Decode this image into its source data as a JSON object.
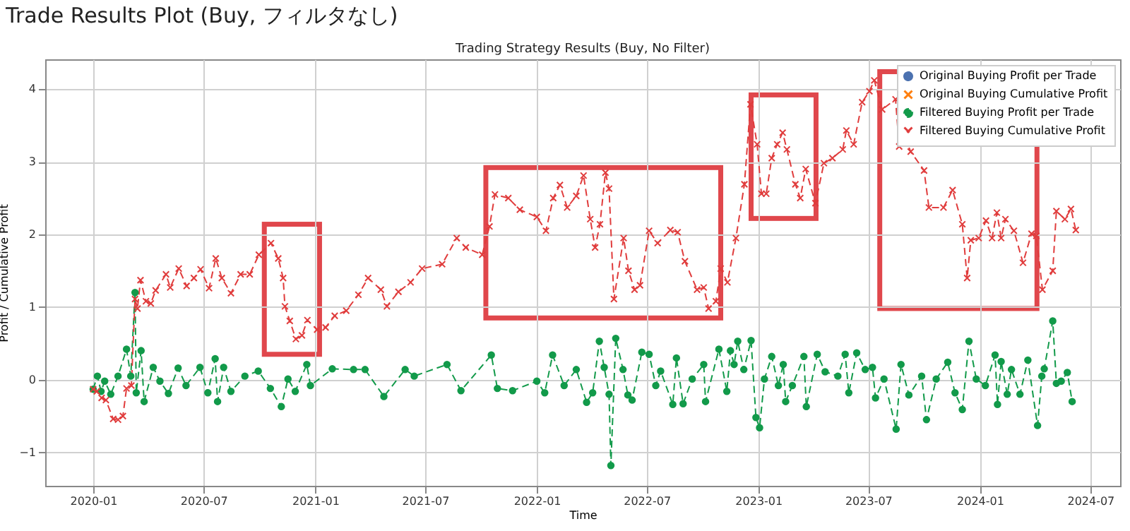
{
  "chart_data": {
    "type": "line",
    "title": "Trade Results Plot (Buy, フィルタなし)",
    "subtitle": "Trading Strategy Results (Buy, No Filter)",
    "xlabel": "Time",
    "ylabel": "Profit / Cumulative Profit",
    "xlim": [
      "2019-10-14",
      "2024-08-19"
    ],
    "xticks": [
      "2020-01",
      "2020-07",
      "2021-01",
      "2021-07",
      "2022-01",
      "2022-07",
      "2023-01",
      "2023-07",
      "2024-01",
      "2024-07"
    ],
    "ylim": [
      -1.46,
      4.41
    ],
    "yticks": [
      {
        "value": -1,
        "label": "−1"
      },
      0,
      1,
      2,
      3,
      4
    ],
    "grid": true,
    "legend": "top right",
    "series": [
      {
        "name": "Original Buying Profit per Trade",
        "color": "#4c72b0",
        "marker": "circle",
        "line_style": "solid"
      },
      {
        "name": "Original Buying Cumulative Profit",
        "color": "#ff7f0e",
        "marker": "cross",
        "line_style": "solid"
      },
      {
        "name": "Filtered Buying Profit per Trade",
        "color": "#129a4a",
        "marker": "circle",
        "line_style": "dashed",
        "x": [
          "2020-01-01",
          "2020-01-08",
          "2020-01-14",
          "2020-01-20",
          "2020-01-30",
          "2020-02-11",
          "2020-02-25",
          "2020-03-03",
          "2020-03-10",
          "2020-03-12",
          "2020-03-20",
          "2020-03-25",
          "2020-04-09",
          "2020-04-20",
          "2020-05-04",
          "2020-05-20",
          "2020-06-02",
          "2020-06-25",
          "2020-07-08",
          "2020-07-20",
          "2020-07-24",
          "2020-08-03",
          "2020-08-15",
          "2020-09-07",
          "2020-09-29",
          "2020-10-19",
          "2020-11-06",
          "2020-11-17",
          "2020-11-29",
          "2020-12-18",
          "2020-12-24",
          "2021-01-29",
          "2021-03-05",
          "2021-03-24",
          "2021-04-24",
          "2021-05-29",
          "2021-06-13",
          "2021-08-06",
          "2021-08-29",
          "2021-10-18",
          "2021-10-28",
          "2021-11-22",
          "2022-01-01",
          "2022-01-14",
          "2022-01-27",
          "2022-02-15",
          "2022-03-07",
          "2022-03-24",
          "2022-04-03",
          "2022-04-14",
          "2022-04-22",
          "2022-04-30",
          "2022-05-03",
          "2022-05-11",
          "2022-05-23",
          "2022-05-31",
          "2022-06-07",
          "2022-06-23",
          "2022-07-05",
          "2022-07-16",
          "2022-07-24",
          "2022-08-13",
          "2022-08-19",
          "2022-08-30",
          "2022-09-14",
          "2022-10-03",
          "2022-10-06",
          "2022-10-28",
          "2022-11-10",
          "2022-11-16",
          "2022-11-22",
          "2022-11-28",
          "2022-12-08",
          "2022-12-20",
          "2022-12-28",
          "2023-01-03",
          "2023-01-11",
          "2023-01-23",
          "2023-02-03",
          "2023-02-11",
          "2023-02-15",
          "2023-02-26",
          "2023-03-17",
          "2023-03-21",
          "2023-04-08",
          "2023-04-21",
          "2023-05-12",
          "2023-05-24",
          "2023-05-30",
          "2023-06-12",
          "2023-06-26",
          "2023-07-08",
          "2023-07-13",
          "2023-07-27",
          "2023-08-16",
          "2023-08-24",
          "2023-09-06",
          "2023-09-27",
          "2023-10-05",
          "2023-10-21",
          "2023-11-09",
          "2023-11-21",
          "2023-12-03",
          "2023-12-14",
          "2023-12-26",
          "2024-01-10",
          "2024-01-26",
          "2024-01-30",
          "2024-02-05",
          "2024-02-15",
          "2024-02-22",
          "2024-03-07",
          "2024-03-20",
          "2024-04-05",
          "2024-04-12",
          "2024-04-16",
          "2024-04-30",
          "2024-05-06",
          "2024-05-14",
          "2024-05-24",
          "2024-06-01"
        ],
        "values": [
          -0.13,
          0.05,
          -0.16,
          -0.02,
          -0.2,
          0.05,
          0.42,
          0.05,
          1.2,
          -0.18,
          0.4,
          -0.3,
          0.17,
          -0.02,
          -0.19,
          0.16,
          -0.08,
          0.17,
          -0.18,
          0.29,
          -0.3,
          0.17,
          -0.16,
          0.05,
          0.12,
          -0.12,
          -0.37,
          0.01,
          -0.16,
          0.21,
          -0.08,
          0.15,
          0.14,
          0.14,
          -0.23,
          0.14,
          0.05,
          0.21,
          -0.15,
          0.34,
          -0.12,
          -0.15,
          -0.02,
          -0.18,
          0.34,
          -0.08,
          0.14,
          -0.31,
          -0.18,
          0.53,
          0.17,
          -0.2,
          -1.18,
          0.57,
          0.14,
          -0.21,
          -0.28,
          0.38,
          0.35,
          -0.08,
          0.12,
          -0.34,
          0.3,
          -0.33,
          0.01,
          0.21,
          -0.3,
          0.42,
          -0.16,
          0.4,
          0.21,
          0.53,
          0.14,
          0.54,
          -0.52,
          -0.66,
          0.01,
          0.32,
          -0.08,
          0.21,
          -0.3,
          -0.08,
          0.32,
          -0.37,
          0.35,
          0.11,
          0.05,
          0.35,
          -0.18,
          0.37,
          0.14,
          0.17,
          -0.25,
          0.01,
          -0.68,
          0.21,
          -0.21,
          0.05,
          -0.55,
          0.01,
          0.24,
          -0.18,
          -0.41,
          0.53,
          0.01,
          -0.08,
          0.34,
          -0.34,
          0.25,
          -0.2,
          0.14,
          -0.2,
          0.27,
          -0.63,
          0.05,
          0.15,
          0.81,
          -0.05,
          -0.02,
          0.1,
          -0.3
        ]
      },
      {
        "name": "Filtered Buying Cumulative Profit",
        "color": "#e03c3c",
        "marker": "cross",
        "line_style": "dashed",
        "x": [
          "2020-01-01",
          "2020-01-07",
          "2020-01-15",
          "2020-01-22",
          "2020-02-03",
          "2020-02-11",
          "2020-02-19",
          "2020-02-25",
          "2020-03-04",
          "2020-03-10",
          "2020-03-14",
          "2020-03-19",
          "2020-03-28",
          "2020-04-05",
          "2020-04-13",
          "2020-04-30",
          "2020-05-07",
          "2020-05-21",
          "2020-06-03",
          "2020-06-15",
          "2020-06-26",
          "2020-07-10",
          "2020-07-21",
          "2020-07-31",
          "2020-08-15",
          "2020-08-31",
          "2020-09-15",
          "2020-09-30",
          "2020-10-20",
          "2020-11-01",
          "2020-11-09",
          "2020-11-12",
          "2020-11-20",
          "2020-11-30",
          "2020-12-10",
          "2020-12-19",
          "2021-01-04",
          "2021-01-18",
          "2021-02-02",
          "2021-02-21",
          "2021-03-13",
          "2021-03-29",
          "2021-04-19",
          "2021-04-29",
          "2021-05-18",
          "2021-06-07",
          "2021-06-26",
          "2021-07-29",
          "2021-08-22",
          "2021-09-06",
          "2021-10-03",
          "2021-10-15",
          "2021-10-24",
          "2021-11-15",
          "2021-12-04",
          "2022-01-01",
          "2022-01-16",
          "2022-01-28",
          "2022-02-08",
          "2022-02-20",
          "2022-03-07",
          "2022-03-19",
          "2022-03-30",
          "2022-04-07",
          "2022-04-15",
          "2022-04-24",
          "2022-04-30",
          "2022-05-08",
          "2022-05-24",
          "2022-06-01",
          "2022-06-11",
          "2022-06-20",
          "2022-07-05",
          "2022-07-19",
          "2022-08-09",
          "2022-08-21",
          "2022-09-02",
          "2022-09-22",
          "2022-10-03",
          "2022-10-11",
          "2022-10-23",
          "2022-10-31",
          "2022-11-11",
          "2022-11-25",
          "2022-12-09",
          "2022-12-19",
          "2022-12-30",
          "2023-01-06",
          "2023-01-14",
          "2023-01-23",
          "2023-02-01",
          "2023-02-10",
          "2023-02-17",
          "2023-03-03",
          "2023-03-11",
          "2023-03-20",
          "2023-04-05",
          "2023-04-19",
          "2023-05-03",
          "2023-05-20",
          "2023-05-26",
          "2023-06-07",
          "2023-06-21",
          "2023-07-03",
          "2023-07-11",
          "2023-07-24",
          "2023-08-15",
          "2023-08-21",
          "2023-08-27",
          "2023-09-09",
          "2023-10-01",
          "2023-10-09",
          "2023-11-02",
          "2023-11-17",
          "2023-12-03",
          "2023-12-11",
          "2023-12-17",
          "2023-12-30",
          "2024-01-11",
          "2024-01-21",
          "2024-01-29",
          "2024-02-05",
          "2024-02-12",
          "2024-02-26",
          "2024-03-12",
          "2024-03-26",
          "2024-04-03",
          "2024-04-13",
          "2024-04-30",
          "2024-05-06",
          "2024-05-20",
          "2024-05-30",
          "2024-06-07"
        ],
        "values": [
          -0.13,
          -0.16,
          -0.25,
          -0.28,
          -0.54,
          -0.55,
          -0.5,
          -0.12,
          -0.08,
          1.11,
          0.98,
          1.37,
          1.08,
          1.05,
          1.23,
          1.45,
          1.27,
          1.53,
          1.29,
          1.4,
          1.52,
          1.26,
          1.67,
          1.4,
          1.19,
          1.45,
          1.45,
          1.72,
          1.88,
          1.67,
          1.4,
          1.01,
          0.81,
          0.56,
          0.61,
          0.82,
          0.69,
          0.72,
          0.88,
          0.95,
          1.17,
          1.4,
          1.24,
          1.01,
          1.21,
          1.34,
          1.53,
          1.59,
          1.95,
          1.82,
          1.72,
          2.11,
          2.55,
          2.5,
          2.34,
          2.24,
          2.05,
          2.5,
          2.68,
          2.37,
          2.53,
          2.81,
          2.21,
          1.82,
          2.14,
          2.85,
          2.63,
          1.11,
          1.95,
          1.5,
          1.24,
          1.3,
          2.05,
          1.88,
          2.06,
          2.03,
          1.63,
          1.24,
          1.27,
          0.98,
          1.08,
          1.53,
          1.34,
          1.95,
          2.69,
          3.79,
          3.24,
          2.56,
          2.56,
          3.05,
          3.24,
          3.4,
          3.17,
          2.69,
          2.5,
          2.9,
          2.43,
          2.98,
          3.05,
          3.17,
          3.43,
          3.24,
          3.82,
          3.97,
          4.12,
          3.72,
          3.86,
          3.21,
          3.39,
          3.14,
          2.88,
          2.37,
          2.37,
          2.61,
          2.14,
          1.4,
          1.92,
          1.95,
          2.19,
          1.95,
          2.3,
          1.95,
          2.21,
          2.05,
          1.61,
          2.01,
          1.98,
          1.24,
          1.5,
          2.32,
          2.21,
          2.35,
          2.06
        ]
      }
    ]
  }
}
